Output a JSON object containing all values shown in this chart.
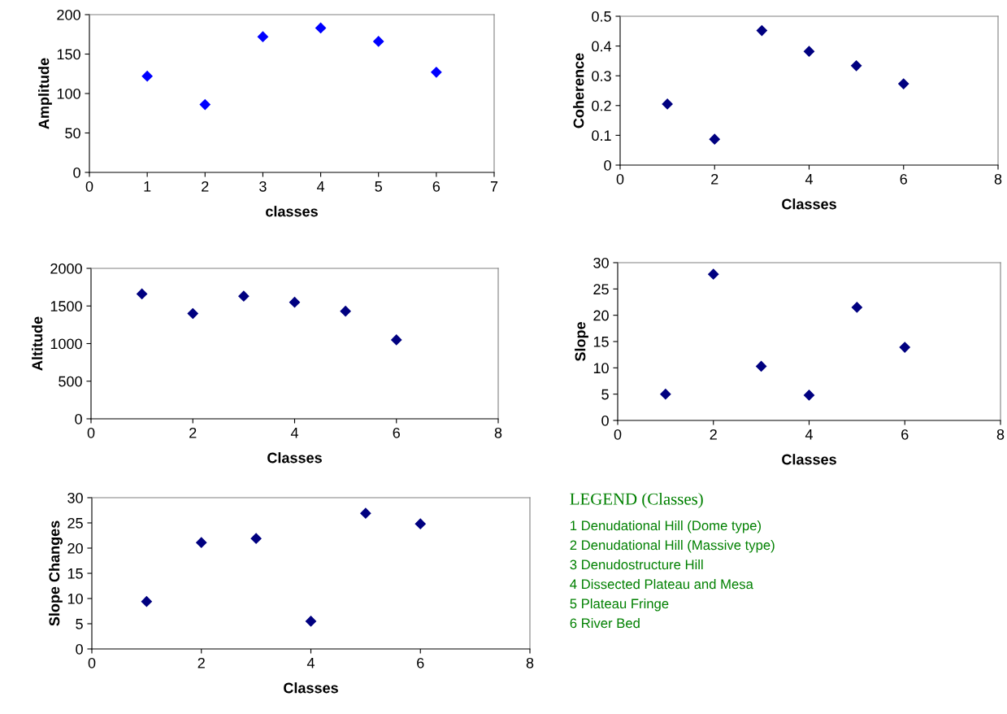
{
  "chart_data": [
    {
      "type": "scatter",
      "xlabel": "classes",
      "ylabel": "Amplitude",
      "marker": "diamond",
      "grid": false,
      "xlim": [
        0,
        7
      ],
      "xticks": [
        0,
        1,
        2,
        3,
        4,
        5,
        6,
        7
      ],
      "ylim": [
        0,
        200
      ],
      "yticks": [
        0,
        50,
        100,
        150,
        200
      ],
      "x": [
        1,
        2,
        3,
        4,
        5,
        6
      ],
      "series": [
        {
          "color": "#0000ff",
          "values": [
            122,
            86,
            172,
            183,
            166,
            127
          ]
        }
      ]
    },
    {
      "type": "scatter",
      "xlabel": "Classes",
      "ylabel": "Coherence",
      "marker": "diamond",
      "grid": false,
      "xlim": [
        0,
        8
      ],
      "xticks": [
        0,
        2,
        4,
        6,
        8
      ],
      "ylim": [
        0,
        0.5
      ],
      "yticks": [
        0,
        0.1,
        0.2,
        0.3,
        0.4,
        0.5
      ],
      "x": [
        1,
        2,
        3,
        4,
        5,
        6
      ],
      "series": [
        {
          "color": "#000080",
          "values": [
            0.205,
            0.087,
            0.452,
            0.382,
            0.334,
            0.273
          ]
        }
      ]
    },
    {
      "type": "scatter",
      "xlabel": "Classes",
      "ylabel": "Altitude",
      "marker": "diamond",
      "grid": false,
      "xlim": [
        0,
        8
      ],
      "xticks": [
        0,
        2,
        4,
        6,
        8
      ],
      "ylim": [
        0,
        2000
      ],
      "yticks": [
        0,
        500,
        1000,
        1500,
        2000
      ],
      "x": [
        1,
        2,
        3,
        4,
        5,
        6
      ],
      "series": [
        {
          "color": "#000080",
          "values": [
            1660,
            1400,
            1630,
            1550,
            1430,
            1050
          ]
        }
      ]
    },
    {
      "type": "scatter",
      "xlabel": "Classes",
      "ylabel": "Slope",
      "marker": "diamond",
      "grid": false,
      "xlim": [
        0,
        8
      ],
      "xticks": [
        0,
        2,
        4,
        6,
        8
      ],
      "ylim": [
        0,
        30
      ],
      "yticks": [
        0,
        5,
        10,
        15,
        20,
        25,
        30
      ],
      "x": [
        1,
        2,
        3,
        4,
        5,
        6
      ],
      "series": [
        {
          "color": "#000080",
          "values": [
            5.0,
            27.8,
            10.3,
            4.8,
            21.5,
            13.9
          ]
        }
      ]
    },
    {
      "type": "scatter",
      "xlabel": "Classes",
      "ylabel": "Slope Changes",
      "marker": "diamond",
      "grid": false,
      "xlim": [
        0,
        8
      ],
      "xticks": [
        0,
        2,
        4,
        6,
        8
      ],
      "ylim": [
        0,
        30
      ],
      "yticks": [
        0,
        5,
        10,
        15,
        20,
        25,
        30
      ],
      "x": [
        1,
        2,
        3,
        4,
        5,
        6
      ],
      "series": [
        {
          "color": "#000080",
          "values": [
            9.4,
            21.1,
            21.9,
            5.5,
            26.9,
            24.8
          ]
        }
      ]
    },
    {
      "type": "other",
      "title": "LEGEND (Classes)",
      "annotations": [
        "1 Denudational Hill (Dome type)",
        "2 Denudational Hill (Massive type)",
        "3 Denudostructure Hill",
        "4 Dissected Plateau and Mesa",
        "5 Plateau Fringe",
        "6 River Bed"
      ]
    }
  ]
}
